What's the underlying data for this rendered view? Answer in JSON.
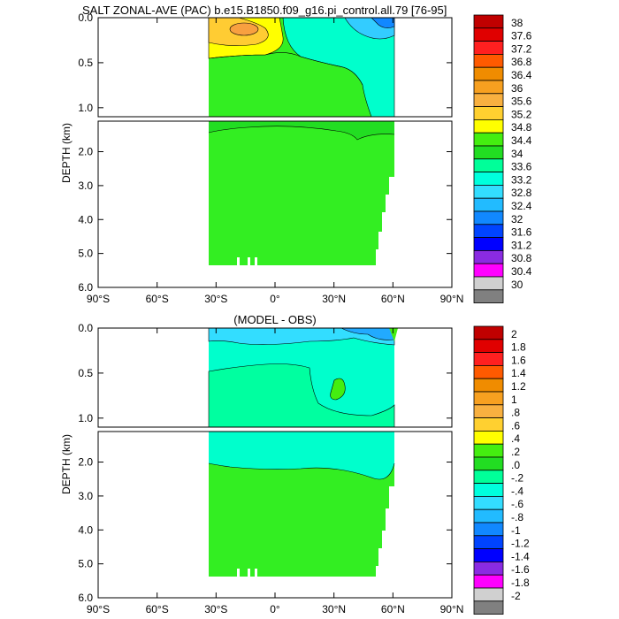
{
  "chart_data": [
    {
      "type": "heatmap",
      "title": "SALT ZONAL-AVE (PAC) b.e15.B1850.f09_g16.pi_control.all.79 [76-95]",
      "ylabel": "DEPTH (km)",
      "x_ticks": [
        "90°S",
        "60°S",
        "30°S",
        "0°",
        "30°N",
        "60°N",
        "90°N"
      ],
      "xlim": [
        -90,
        90
      ],
      "y_ticks_upper": [
        "0.0",
        "0.5",
        "1.0"
      ],
      "y_ticks_lower": [
        "2.0",
        "3.0",
        "4.0",
        "5.0",
        "6.0"
      ],
      "ylim_upper": [
        0,
        1.1
      ],
      "ylim_lower": [
        1.1,
        6.0
      ],
      "colorbar_labels": [
        "38",
        "37.6",
        "37.2",
        "36.8",
        "36.4",
        "36",
        "35.6",
        "35.2",
        "34.8",
        "34.4",
        "34",
        "33.6",
        "33.2",
        "32.8",
        "32.4",
        "32",
        "31.6",
        "31.2",
        "30.8",
        "30.4",
        "30"
      ],
      "colors": [
        "#c00000",
        "#e00000",
        "#ff2020",
        "#ff5a00",
        "#f08c00",
        "#f7a020",
        "#f8b040",
        "#ffd030",
        "#ffff00",
        "#44ee10",
        "#22dd22",
        "#00ff99",
        "#00ffdd",
        "#33ddff",
        "#22bbff",
        "#1188ff",
        "#0044ff",
        "#0000ff",
        "#8a2be2",
        "#ff00ff",
        "#d0d0d0",
        "#808080"
      ]
    },
    {
      "type": "heatmap",
      "title": "(MODEL - OBS)",
      "ylabel": "DEPTH (km)",
      "x_ticks": [
        "90°S",
        "60°S",
        "30°S",
        "0°",
        "30°N",
        "60°N",
        "90°N"
      ],
      "xlim": [
        -90,
        90
      ],
      "y_ticks_upper": [
        "0.0",
        "0.5",
        "1.0"
      ],
      "y_ticks_lower": [
        "2.0",
        "3.0",
        "4.0",
        "5.0",
        "6.0"
      ],
      "ylim_upper": [
        0,
        1.1
      ],
      "ylim_lower": [
        1.1,
        6.0
      ],
      "colorbar_labels": [
        "2",
        "1.8",
        "1.6",
        "1.4",
        "1.2",
        "1",
        ".8",
        ".6",
        ".4",
        ".2",
        ".0",
        "-.2",
        "-.4",
        "-.6",
        "-.8",
        "-1",
        "-1.2",
        "-1.4",
        "-1.6",
        "-1.8",
        "-2"
      ],
      "colors": [
        "#c00000",
        "#e00000",
        "#ff2020",
        "#ff5a00",
        "#f08c00",
        "#f7a020",
        "#f8b040",
        "#ffd030",
        "#ffff00",
        "#44ee10",
        "#22dd22",
        "#00ff99",
        "#00ffdd",
        "#33ddff",
        "#22bbff",
        "#1188ff",
        "#0044ff",
        "#0000ff",
        "#8a2be2",
        "#ff00ff",
        "#d0d0d0",
        "#808080"
      ]
    }
  ]
}
